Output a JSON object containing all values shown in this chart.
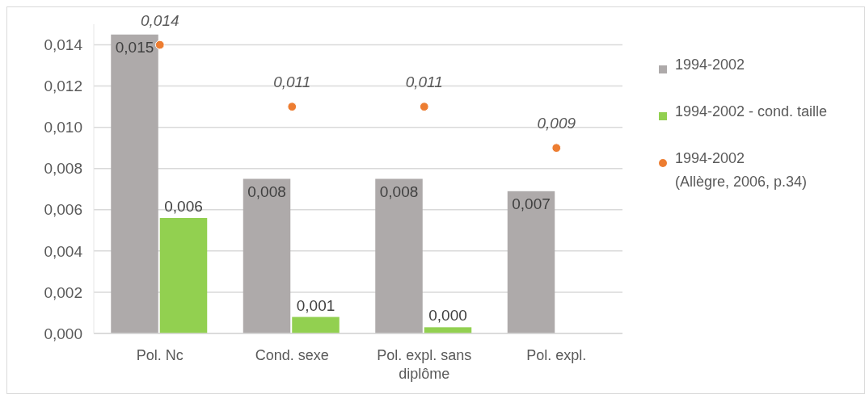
{
  "chart_data": {
    "type": "bar",
    "categories": [
      "Pol. Nc",
      "Cond. sexe",
      "Pol. expl. sans diplôme",
      "Pol. expl."
    ],
    "series": [
      {
        "name": "1994-2002",
        "color": "#aeaaaa",
        "values": [
          0.0145,
          0.0075,
          0.0075,
          0.0069
        ],
        "value_labels": [
          "0,015",
          "0,008",
          "0,008",
          "0,007"
        ]
      },
      {
        "name": "1994-2002 - cond. taille",
        "color": "#92d050",
        "values": [
          0.0056,
          0.0008,
          0.0003,
          null
        ],
        "value_labels": [
          "0,006",
          "0,001",
          "0,000",
          null
        ]
      },
      {
        "name": "1994-2002 (Allègre, 2006, p.34)",
        "type": "scatter",
        "color": "#ed7d31",
        "values": [
          0.014,
          0.011,
          0.011,
          0.009
        ],
        "value_labels": [
          "0,014",
          "0,011",
          "0,011",
          "0,009"
        ]
      }
    ],
    "ylim": [
      0,
      0.015
    ],
    "yticks": [
      {
        "value": 0,
        "label": "0,000"
      },
      {
        "value": 0.002,
        "label": "0,002"
      },
      {
        "value": 0.004,
        "label": "0,004"
      },
      {
        "value": 0.006,
        "label": "0,006"
      },
      {
        "value": 0.008,
        "label": "0,008"
      },
      {
        "value": 0.01,
        "label": "0,010"
      },
      {
        "value": 0.012,
        "label": "0,012"
      },
      {
        "value": 0.014,
        "label": "0,014"
      }
    ],
    "grid": "y",
    "legend": "right",
    "marker": "circle"
  }
}
